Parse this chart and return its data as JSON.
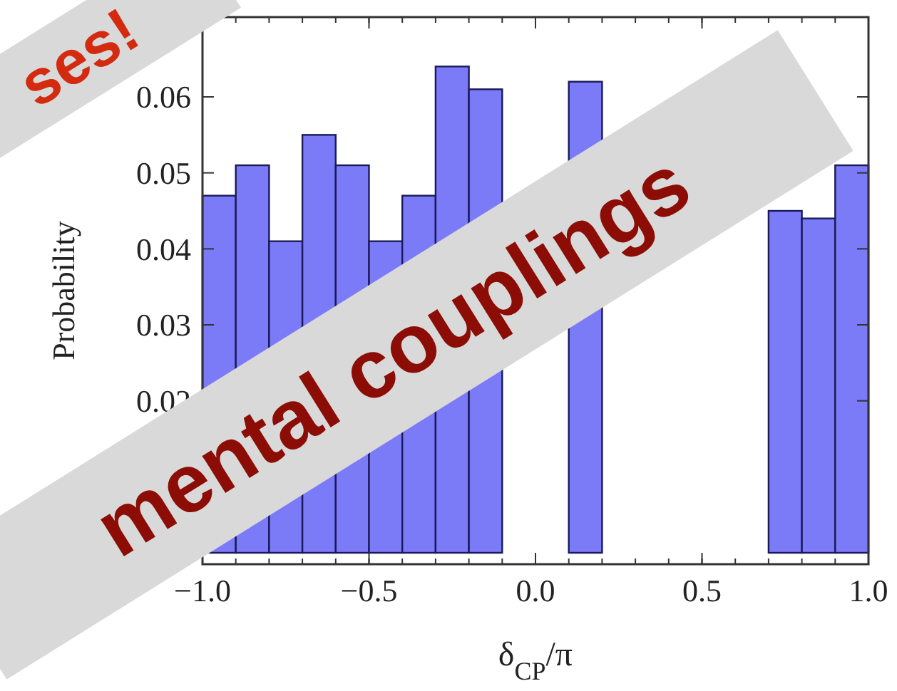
{
  "chart_data": {
    "type": "histogram",
    "xlabel": "δ$_{CP}$/π",
    "ylabel": "Probability",
    "color": "#7b7bf8",
    "bins": [
      -1,
      -0.9,
      -0.8,
      -0.7,
      -0.6,
      -0.5,
      -0.4,
      -0.3,
      -0.2,
      -0.1,
      0,
      0.1,
      0.2,
      0.3,
      0.4,
      0.5,
      0.6,
      0.7,
      0.8,
      0.9,
      1
    ],
    "values": [
      0.047,
      0.051,
      0.041,
      0.055,
      0.051,
      0.041,
      0.047,
      0.064,
      0.061,
      null,
      null,
      0.062,
      null,
      null,
      null,
      null,
      null,
      0.045,
      0.044,
      0.051
    ],
    "xlim": [
      -1,
      1
    ],
    "ylim": [
      -0.0015,
      0.0705
    ],
    "xticks": [
      {
        "value": -1,
        "label": "−1.0"
      },
      {
        "value": -0.5,
        "label": "−0.5"
      },
      {
        "value": 0,
        "label": "0.0"
      },
      {
        "value": 0.5,
        "label": "0.5"
      },
      {
        "value": 1,
        "label": "1.0"
      }
    ],
    "yticks": [
      0.02,
      0.03,
      0.04,
      0.05,
      0.06
    ],
    "annotations": [
      "ses!",
      "mental couplings"
    ]
  }
}
